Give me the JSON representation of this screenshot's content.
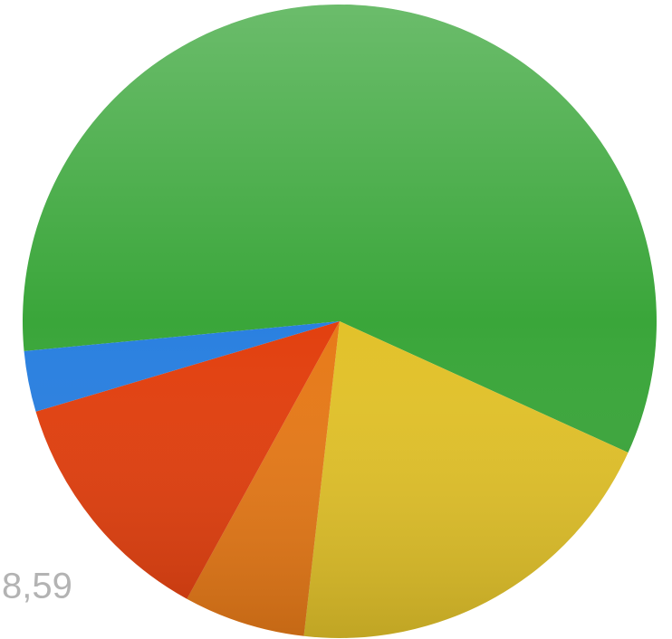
{
  "chart_data": {
    "type": "pie",
    "values": [
      58.3,
      20,
      6.2,
      12.4,
      3.1
    ],
    "colors": [
      "#3aa63a",
      "#e2c22a",
      "#e77a18",
      "#e2400f",
      "#2a80e0"
    ],
    "annotation": "8,59"
  }
}
